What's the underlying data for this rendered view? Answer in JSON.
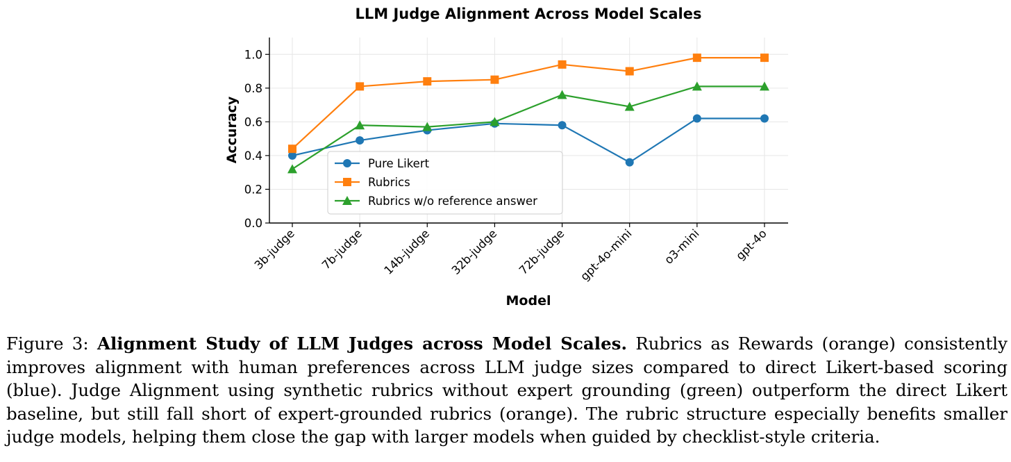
{
  "chart_data": {
    "type": "line",
    "title": "LLM Judge Alignment Across Model Scales",
    "xlabel": "Model",
    "ylabel": "Accuracy",
    "categories": [
      "3b-judge",
      "7b-judge",
      "14b-judge",
      "32b-judge",
      "72b-judge",
      "gpt-4o-mini",
      "o3-mini",
      "gpt-4o"
    ],
    "ylim": [
      0,
      1.1
    ],
    "yticks": [
      "0.0",
      "0.2",
      "0.4",
      "0.6",
      "0.8",
      "1.0"
    ],
    "grid": true,
    "legend_position": "lower-center",
    "series": [
      {
        "name": "Pure Likert",
        "color": "#1f77b4",
        "marker": "circle",
        "values": [
          0.4,
          0.49,
          0.55,
          0.59,
          0.58,
          0.36,
          0.62,
          0.62
        ]
      },
      {
        "name": "Rubrics",
        "color": "#ff7f0e",
        "marker": "square",
        "values": [
          0.44,
          0.81,
          0.84,
          0.85,
          0.94,
          0.9,
          0.98,
          0.98
        ]
      },
      {
        "name": "Rubrics w/o reference answer",
        "color": "#2ca02c",
        "marker": "triangle",
        "values": [
          0.32,
          0.58,
          0.57,
          0.6,
          0.76,
          0.69,
          0.81,
          0.81
        ]
      }
    ]
  },
  "caption": {
    "label": "Figure 3:",
    "bold": "Alignment Study of LLM Judges across Model Scales.",
    "text": "Rubrics as Rewards (orange) consistently improves alignment with human preferences across LLM judge sizes compared to direct Likert-based scoring (blue). Judge Alignment using synthetic rubrics without expert grounding (green) outperform the direct Likert baseline, but still fall short of expert-grounded rubrics (orange). The rubric structure especially benefits smaller judge models, helping them close the gap with larger models when guided by checklist-style criteria."
  }
}
